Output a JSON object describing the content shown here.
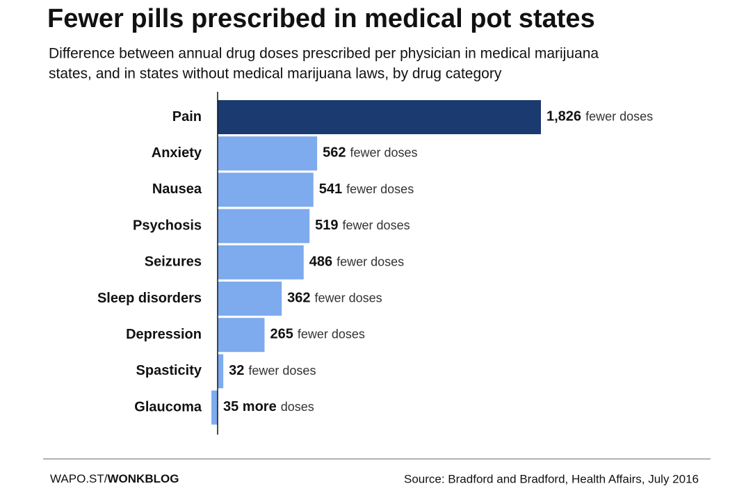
{
  "chart_data": {
    "type": "bar",
    "orientation": "horizontal",
    "title": "Fewer pills prescribed in medical pot states",
    "subtitle": [
      "Difference between annual drug doses prescribed per physician in medical marijuana",
      "states, and in states without medical marijuana laws, by drug category"
    ],
    "categories": [
      "Pain",
      "Anxiety",
      "Nausea",
      "Psychosis",
      "Seizures",
      "Sleep disorders",
      "Depression",
      "Spasticity",
      "Glaucoma"
    ],
    "values": [
      1826,
      562,
      541,
      519,
      486,
      362,
      265,
      32,
      -35
    ],
    "value_labels": [
      "1,826",
      "562",
      "541",
      "519",
      "486",
      "362",
      "265",
      "32",
      "35 more"
    ],
    "label_suffixes": [
      "fewer doses",
      "fewer doses",
      "fewer doses",
      "fewer doses",
      "fewer doses",
      "fewer doses",
      "fewer doses",
      "fewer doses",
      "doses"
    ],
    "colors": [
      "#1b3a70",
      "#7eaaee",
      "#7eaaee",
      "#7eaaee",
      "#7eaaee",
      "#7eaaee",
      "#7eaaee",
      "#7eaaee",
      "#7eaaee"
    ],
    "footer": {
      "site": "WAPO.ST/",
      "blog": "WONKBLOG",
      "source": "Source: Bradford and Bradford, Health Affairs, July 2016"
    }
  }
}
